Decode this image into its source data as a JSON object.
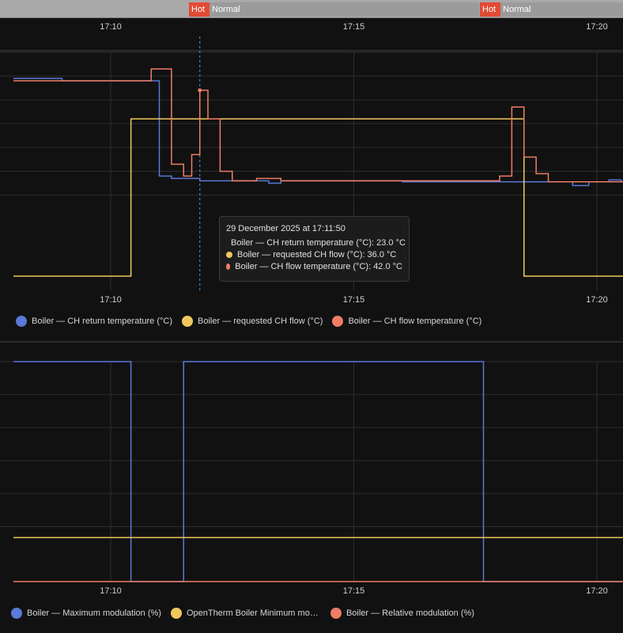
{
  "timeline": {
    "segments": [
      {
        "label": "Hot",
        "kind": "hot"
      },
      {
        "label": "Normal",
        "kind": "normal"
      },
      {
        "label": "Hot",
        "kind": "hot"
      },
      {
        "label": "Normal",
        "kind": "normal"
      }
    ]
  },
  "colors": {
    "blue": "#5a79d8",
    "yellow": "#f0c75e",
    "salmon": "#ef7d65",
    "grid": "#2e2e2e",
    "background": "#111111"
  },
  "tooltip": {
    "title": "29 December 2025 at 17:11:50",
    "rows": [
      {
        "text": "Boiler — CH return temperature (°C): 23.0 °C",
        "color": "#5a79d8"
      },
      {
        "text": "Boiler — requested CH flow (°C): 36.0 °C",
        "color": "#f0c75e"
      },
      {
        "text": "Boiler — CH flow temperature (°C): 42.0 °C",
        "color": "#ef7d65"
      }
    ]
  },
  "legend1": [
    {
      "label": "Boiler — CH return temperature (°C)",
      "color": "#5a79d8"
    },
    {
      "label": "Boiler — requested CH flow (°C)",
      "color": "#f0c75e"
    },
    {
      "label": "Boiler — CH flow temperature (°C)",
      "color": "#ef7d65"
    }
  ],
  "legend2": [
    {
      "label": "Boiler — Maximum modulation (%)",
      "color": "#5a79d8"
    },
    {
      "label": "OpenTherm Boiler Minimum modulation (%)",
      "color": "#f0c75e"
    },
    {
      "label": "Boiler — Relative modulation (%)",
      "color": "#ef7d65"
    }
  ],
  "chart_data": [
    {
      "type": "line",
      "step": true,
      "x_ticks": [
        "17:10",
        "17:15",
        "17:20"
      ],
      "hover_time": "17:11:50",
      "ylim": [
        0,
        50
      ],
      "y_grid_lines": [
        50,
        45,
        40,
        35,
        30,
        25,
        20
      ],
      "series": [
        {
          "name": "Boiler — CH return temperature (°C)",
          "color": "#5a79d8",
          "x": [
            "17:08:00",
            "17:09:00",
            "17:10:50",
            "17:11:00",
            "17:11:15",
            "17:11:50",
            "17:12:30",
            "17:13:00",
            "17:13:15",
            "17:13:30",
            "17:14:00",
            "17:14:30",
            "17:15:00",
            "17:16:00",
            "17:16:30",
            "17:17:00",
            "17:18:00",
            "17:18:30",
            "17:19:00",
            "17:19:30",
            "17:19:50",
            "17:20:15",
            "17:20:30"
          ],
          "y": [
            44.5,
            44.0,
            44.0,
            24.0,
            23.5,
            23.0,
            23.0,
            23.0,
            22.5,
            23.0,
            23.0,
            23.0,
            23.0,
            22.8,
            22.8,
            22.8,
            22.8,
            22.8,
            22.8,
            22.0,
            22.8,
            23.2,
            22.8
          ]
        },
        {
          "name": "Boiler — requested CH flow (°C)",
          "color": "#f0c75e",
          "x": [
            "17:08:00",
            "17:10:25",
            "17:18:30",
            "17:20:30"
          ],
          "y": [
            3.0,
            36.0,
            3.0,
            3.0
          ]
        },
        {
          "name": "Boiler — CH flow temperature (°C)",
          "color": "#ef7d65",
          "x": [
            "17:08:00",
            "17:10:50",
            "17:11:15",
            "17:11:30",
            "17:11:40",
            "17:11:50",
            "17:12:00",
            "17:12:15",
            "17:12:30",
            "17:13:00",
            "17:13:15",
            "17:13:30",
            "17:14:00",
            "17:14:30",
            "17:15:00",
            "17:16:00",
            "17:17:00",
            "17:18:00",
            "17:18:15",
            "17:18:30",
            "17:18:45",
            "17:19:00",
            "17:20:30"
          ],
          "y": [
            44.0,
            46.5,
            26.5,
            24.0,
            28.5,
            42.0,
            36.0,
            25.0,
            23.0,
            23.5,
            23.5,
            23.0,
            23.0,
            23.0,
            23.0,
            23.0,
            23.0,
            24.0,
            38.5,
            28.0,
            24.5,
            22.8,
            22.8
          ]
        }
      ]
    },
    {
      "type": "line",
      "step": true,
      "x_ticks": [
        "17:10",
        "17:15",
        "17:20"
      ],
      "ylim": [
        0,
        100
      ],
      "y_grid_lines": [
        100,
        85,
        70,
        55,
        40,
        25
      ],
      "series": [
        {
          "name": "Boiler — Maximum modulation (%)",
          "color": "#5a79d8",
          "x": [
            "17:08:00",
            "17:10:25",
            "17:11:30",
            "17:17:40",
            "17:20:30"
          ],
          "y": [
            100,
            0,
            100,
            0,
            0
          ]
        },
        {
          "name": "OpenTherm Boiler Minimum modulation (%)",
          "color": "#f0c75e",
          "x": [
            "17:08:00",
            "17:20:30"
          ],
          "y": [
            20,
            20
          ]
        },
        {
          "name": "Boiler — Relative modulation (%)",
          "color": "#ef7d65",
          "x": [
            "17:08:00",
            "17:20:30"
          ],
          "y": [
            0,
            0
          ]
        }
      ]
    }
  ]
}
